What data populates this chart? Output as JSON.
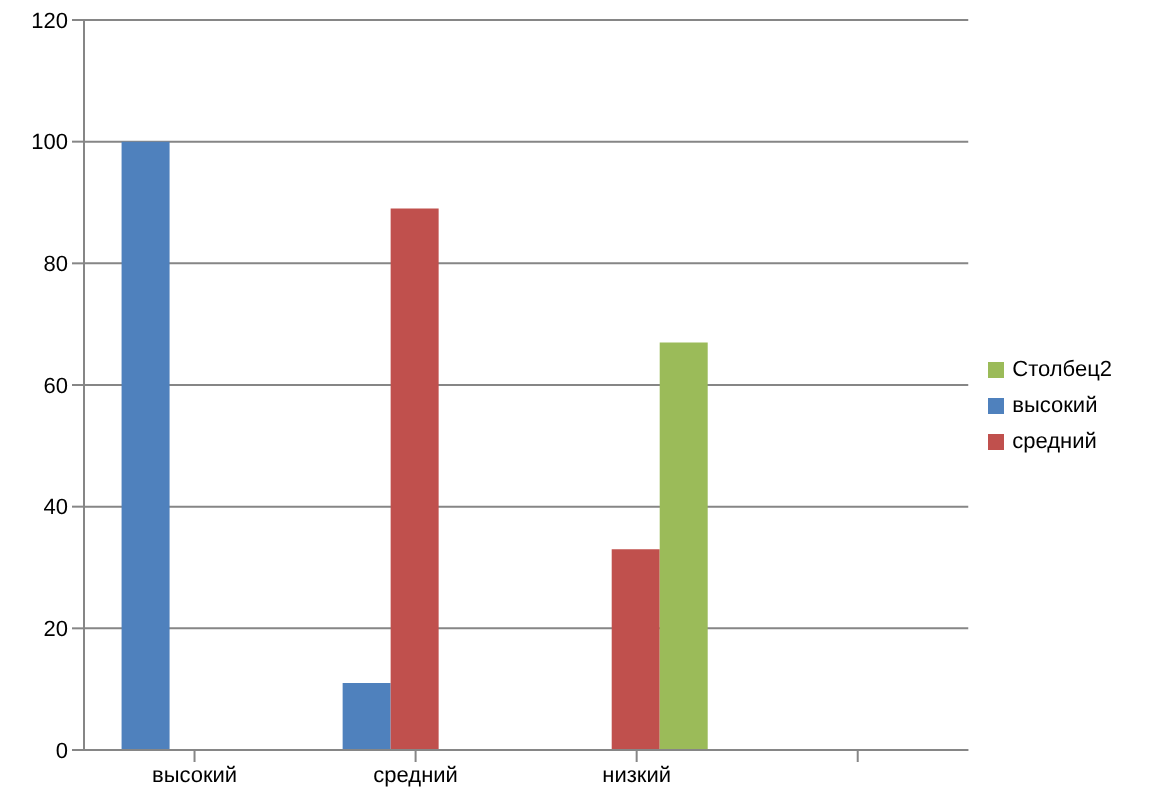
{
  "chart_data": {
    "type": "bar",
    "categories": [
      "высокий",
      "средний",
      "низкий",
      null
    ],
    "series": [
      {
        "name": "высокий",
        "color": "#4f81bd",
        "values": [
          100,
          11,
          null,
          null
        ]
      },
      {
        "name": "средний",
        "color": "#c0504d",
        "values": [
          null,
          89,
          33,
          null
        ]
      },
      {
        "name": "Столбец2",
        "color": "#9bbb59",
        "values": [
          null,
          null,
          67,
          null
        ]
      }
    ],
    "ylim": [
      0,
      120
    ],
    "yticks": [
      0,
      20,
      40,
      60,
      80,
      100,
      120
    ],
    "grid": "y",
    "legend": "right"
  }
}
